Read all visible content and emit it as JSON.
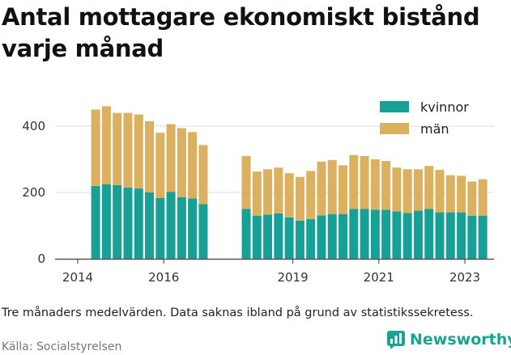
{
  "title": "Antal mottagare ekonomiskt bistånd varje månad",
  "note": "Tre månaders medelvärden. Data saknas ibland på grund av statistikssekretess.",
  "source": "Källa: Socialstyrelsen",
  "brand": "Newsworthy",
  "colors": {
    "kvinnor": "#16a096",
    "man": "#dbb05e",
    "grid": "#dddddd",
    "axis": "#555555",
    "brand": "#19a393"
  },
  "chart_data": {
    "type": "bar",
    "stacked": true,
    "x_ticks": [
      2014,
      2016,
      2019,
      2021,
      2023
    ],
    "y_ticks": [
      0,
      200,
      400
    ],
    "ylim": [
      0,
      500
    ],
    "legend_placement": "top-right",
    "grid": true,
    "series": [
      {
        "name": "kvinnor",
        "color": "#16a096"
      },
      {
        "name": "män",
        "color": "#dbb05e"
      }
    ],
    "points": [
      {
        "x": "2014-06",
        "kvinnor": 220,
        "man": 230
      },
      {
        "x": "2014-09",
        "kvinnor": 225,
        "man": 235
      },
      {
        "x": "2014-12",
        "kvinnor": 222,
        "man": 218
      },
      {
        "x": "2015-03",
        "kvinnor": 215,
        "man": 225
      },
      {
        "x": "2015-06",
        "kvinnor": 212,
        "man": 223
      },
      {
        "x": "2015-09",
        "kvinnor": 200,
        "man": 215
      },
      {
        "x": "2015-12",
        "kvinnor": 183,
        "man": 197
      },
      {
        "x": "2016-03",
        "kvinnor": 202,
        "man": 204
      },
      {
        "x": "2016-06",
        "kvinnor": 186,
        "man": 208
      },
      {
        "x": "2016-09",
        "kvinnor": 182,
        "man": 200
      },
      {
        "x": "2016-12",
        "kvinnor": 165,
        "man": 178
      },
      {
        "x": "2017-03",
        "kvinnor": null,
        "man": null
      },
      {
        "x": "2017-06",
        "kvinnor": null,
        "man": null
      },
      {
        "x": "2017-09",
        "kvinnor": null,
        "man": null
      },
      {
        "x": "2017-12",
        "kvinnor": 150,
        "man": 160
      },
      {
        "x": "2018-03",
        "kvinnor": 130,
        "man": 133
      },
      {
        "x": "2018-06",
        "kvinnor": 133,
        "man": 137
      },
      {
        "x": "2018-09",
        "kvinnor": 137,
        "man": 138
      },
      {
        "x": "2018-12",
        "kvinnor": 125,
        "man": 133
      },
      {
        "x": "2019-03",
        "kvinnor": 115,
        "man": 132
      },
      {
        "x": "2019-06",
        "kvinnor": 120,
        "man": 145
      },
      {
        "x": "2019-09",
        "kvinnor": 131,
        "man": 162
      },
      {
        "x": "2019-12",
        "kvinnor": 135,
        "man": 163
      },
      {
        "x": "2020-03",
        "kvinnor": 135,
        "man": 147
      },
      {
        "x": "2020-06",
        "kvinnor": 150,
        "man": 163
      },
      {
        "x": "2020-09",
        "kvinnor": 150,
        "man": 160
      },
      {
        "x": "2020-12",
        "kvinnor": 148,
        "man": 152
      },
      {
        "x": "2021-03",
        "kvinnor": 148,
        "man": 147
      },
      {
        "x": "2021-06",
        "kvinnor": 143,
        "man": 132
      },
      {
        "x": "2021-09",
        "kvinnor": 138,
        "man": 132
      },
      {
        "x": "2021-12",
        "kvinnor": 145,
        "man": 125
      },
      {
        "x": "2022-03",
        "kvinnor": 150,
        "man": 130
      },
      {
        "x": "2022-06",
        "kvinnor": 140,
        "man": 128
      },
      {
        "x": "2022-09",
        "kvinnor": 140,
        "man": 112
      },
      {
        "x": "2022-12",
        "kvinnor": 140,
        "man": 110
      },
      {
        "x": "2023-03",
        "kvinnor": 130,
        "man": 103
      },
      {
        "x": "2023-06",
        "kvinnor": 130,
        "man": 110
      }
    ]
  }
}
